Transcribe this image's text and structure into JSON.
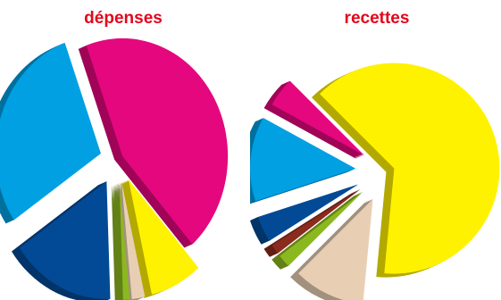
{
  "chart_data": [
    {
      "type": "pie",
      "title": "dépenses",
      "series": [
        {
          "value": 44,
          "color": "#e5077e"
        },
        {
          "value": 8,
          "color": "#fff200"
        },
        {
          "value": 2,
          "color": "#e8cfb4"
        },
        {
          "value": 1,
          "color": "#8cb81f"
        },
        {
          "value": 16,
          "color": "#034a96"
        },
        {
          "value": 29,
          "color": "#00a0e3"
        }
      ]
    },
    {
      "type": "pie",
      "title": "recettes",
      "series": [
        {
          "value": 64,
          "color": "#fff200"
        },
        {
          "value": 11,
          "color": "#e8cfb4"
        },
        {
          "value": 2,
          "color": "#8cb81f"
        },
        {
          "value": 1.5,
          "color": "#8a2b1d"
        },
        {
          "value": 4,
          "color": "#034a96"
        },
        {
          "value": 13,
          "color": "#00a0e3"
        },
        {
          "value": 4.5,
          "color": "#e5077e"
        }
      ]
    }
  ]
}
